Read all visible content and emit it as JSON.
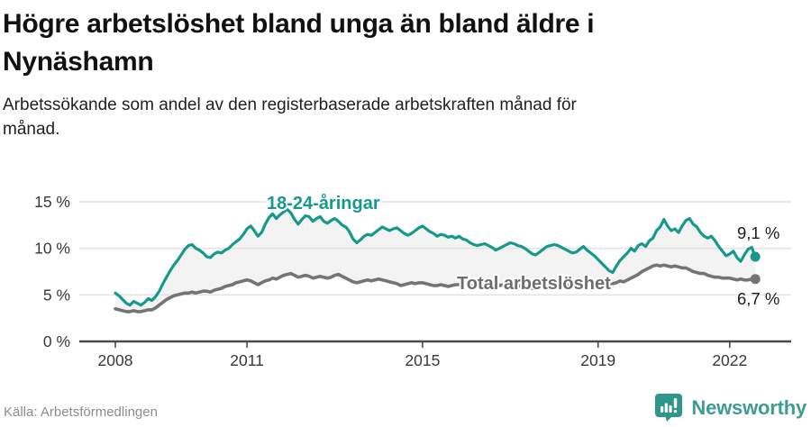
{
  "header": {
    "title_line1": "Högre arbetslöshet bland unga än bland äldre i",
    "title_line2": "Nynäshamn",
    "subtitle_line1": "Arbetssökande som andel av den registerbaserade arbetskraften månad för",
    "subtitle_line2": "månad."
  },
  "chart_data": {
    "type": "line",
    "title": "Högre arbetslöshet bland unga än bland äldre i Nynäshamn",
    "subtitle": "Arbetssökande som andel av den registerbaserade arbetskraften månad för månad.",
    "unit": "%",
    "frequency": "monthly",
    "x_start": 2008,
    "x_end_label": "aug 2022",
    "ylim": [
      0,
      17.5
    ],
    "grid": true,
    "band_fill": "#f3f3f3",
    "yticks": [
      {
        "value": 0,
        "label": "0 %"
      },
      {
        "value": 5,
        "label": "5 %"
      },
      {
        "value": 10,
        "label": "10 %"
      },
      {
        "value": 15,
        "label": "15 %"
      }
    ],
    "xticks": [
      {
        "value": 2008,
        "label": "2008"
      },
      {
        "value": 2011,
        "label": "2011"
      },
      {
        "value": 2015,
        "label": "2015"
      },
      {
        "value": 2019,
        "label": "2019"
      },
      {
        "value": 2022,
        "label": "2022"
      }
    ],
    "series": [
      {
        "name": "18-24-åringar",
        "color": "#16998b",
        "end_label": "9,1 %",
        "end_value": 9.1,
        "values": [
          5.2,
          4.9,
          4.5,
          4.1,
          3.9,
          4.3,
          4.1,
          3.9,
          4.2,
          4.6,
          4.4,
          4.8,
          5.4,
          6.2,
          6.9,
          7.6,
          8.2,
          8.7,
          9.3,
          9.9,
          10.3,
          10.4,
          10.0,
          9.8,
          9.5,
          9.1,
          9.0,
          9.4,
          9.6,
          9.5,
          9.8,
          10.0,
          10.4,
          10.7,
          11.0,
          11.5,
          12.1,
          12.4,
          11.9,
          11.3,
          11.7,
          12.6,
          13.3,
          13.7,
          13.2,
          13.6,
          13.9,
          14.2,
          13.8,
          13.1,
          12.6,
          13.1,
          13.5,
          13.4,
          12.9,
          13.2,
          13.4,
          12.9,
          12.7,
          13.0,
          13.2,
          12.9,
          12.5,
          12.3,
          11.8,
          11.0,
          10.6,
          10.9,
          11.3,
          11.5,
          11.4,
          11.7,
          12.0,
          12.3,
          12.1,
          11.9,
          12.1,
          12.2,
          11.9,
          11.6,
          11.4,
          11.6,
          11.9,
          12.2,
          12.4,
          12.1,
          11.8,
          11.6,
          11.3,
          11.5,
          11.4,
          11.2,
          11.3,
          11.1,
          11.3,
          11.0,
          10.9,
          10.6,
          10.4,
          10.3,
          10.4,
          10.5,
          10.3,
          10.1,
          9.8,
          10.0,
          10.2,
          10.4,
          10.6,
          10.5,
          10.3,
          10.2,
          10.0,
          9.7,
          9.4,
          9.3,
          9.6,
          9.9,
          10.2,
          10.3,
          10.4,
          10.3,
          10.1,
          9.9,
          9.7,
          9.5,
          9.6,
          9.9,
          10.2,
          9.8,
          9.5,
          9.2,
          8.8,
          8.4,
          8.0,
          7.6,
          7.4,
          8.1,
          8.7,
          9.1,
          9.5,
          10.0,
          9.7,
          10.3,
          10.5,
          10.2,
          10.8,
          11.1,
          11.9,
          12.3,
          13.1,
          12.4,
          11.9,
          12.1,
          11.7,
          12.4,
          13.0,
          13.2,
          12.6,
          12.3,
          11.7,
          11.3,
          11.1,
          11.3,
          10.8,
          10.2,
          9.7,
          9.2,
          9.4,
          9.7,
          9.0,
          8.6,
          9.3,
          9.9,
          10.1,
          9.1
        ]
      },
      {
        "name": "Total arbetslöshet",
        "color": "#747474",
        "end_label": "6,7 %",
        "end_value": 6.7,
        "values": [
          3.5,
          3.4,
          3.3,
          3.2,
          3.2,
          3.3,
          3.2,
          3.2,
          3.3,
          3.4,
          3.4,
          3.6,
          3.9,
          4.2,
          4.5,
          4.7,
          4.9,
          5.0,
          5.1,
          5.2,
          5.2,
          5.3,
          5.2,
          5.3,
          5.4,
          5.4,
          5.3,
          5.5,
          5.6,
          5.7,
          5.9,
          6.0,
          6.1,
          6.3,
          6.4,
          6.5,
          6.6,
          6.5,
          6.3,
          6.1,
          6.3,
          6.5,
          6.6,
          6.8,
          6.7,
          6.9,
          7.1,
          7.2,
          7.3,
          7.1,
          6.9,
          7.0,
          7.1,
          7.0,
          6.8,
          6.9,
          7.0,
          6.9,
          6.8,
          6.9,
          7.1,
          7.2,
          7.0,
          6.8,
          6.6,
          6.4,
          6.3,
          6.4,
          6.5,
          6.6,
          6.5,
          6.6,
          6.7,
          6.6,
          6.5,
          6.4,
          6.3,
          6.2,
          6.0,
          6.1,
          6.2,
          6.3,
          6.2,
          6.3,
          6.3,
          6.2,
          6.1,
          6.0,
          6.0,
          6.1,
          6.0,
          5.9,
          6.0,
          6.1,
          6.1,
          6.2,
          6.1,
          6.0,
          5.9,
          5.9,
          6.0,
          6.0,
          5.9,
          5.8,
          5.9,
          6.0,
          6.1,
          6.1,
          6.2,
          6.1,
          6.0,
          5.9,
          5.9,
          5.8,
          5.7,
          5.8,
          5.9,
          6.0,
          6.1,
          6.2,
          6.3,
          6.3,
          6.2,
          6.1,
          6.0,
          5.9,
          6.0,
          6.1,
          6.2,
          6.2,
          6.1,
          6.2,
          6.3,
          6.2,
          6.1,
          6.1,
          6.2,
          6.3,
          6.5,
          6.4,
          6.6,
          6.8,
          7.0,
          7.2,
          7.5,
          7.7,
          7.9,
          8.1,
          8.2,
          8.1,
          8.2,
          8.1,
          8.0,
          8.1,
          8.0,
          7.9,
          7.9,
          7.7,
          7.5,
          7.4,
          7.3,
          7.3,
          7.1,
          7.0,
          6.9,
          6.9,
          6.8,
          6.8,
          6.8,
          6.7,
          6.6,
          6.7,
          6.6,
          6.6,
          6.7,
          6.7
        ]
      }
    ]
  },
  "footer": {
    "source": "Källa: Arbetsförmedlingen",
    "brand": "Newsworthy"
  }
}
